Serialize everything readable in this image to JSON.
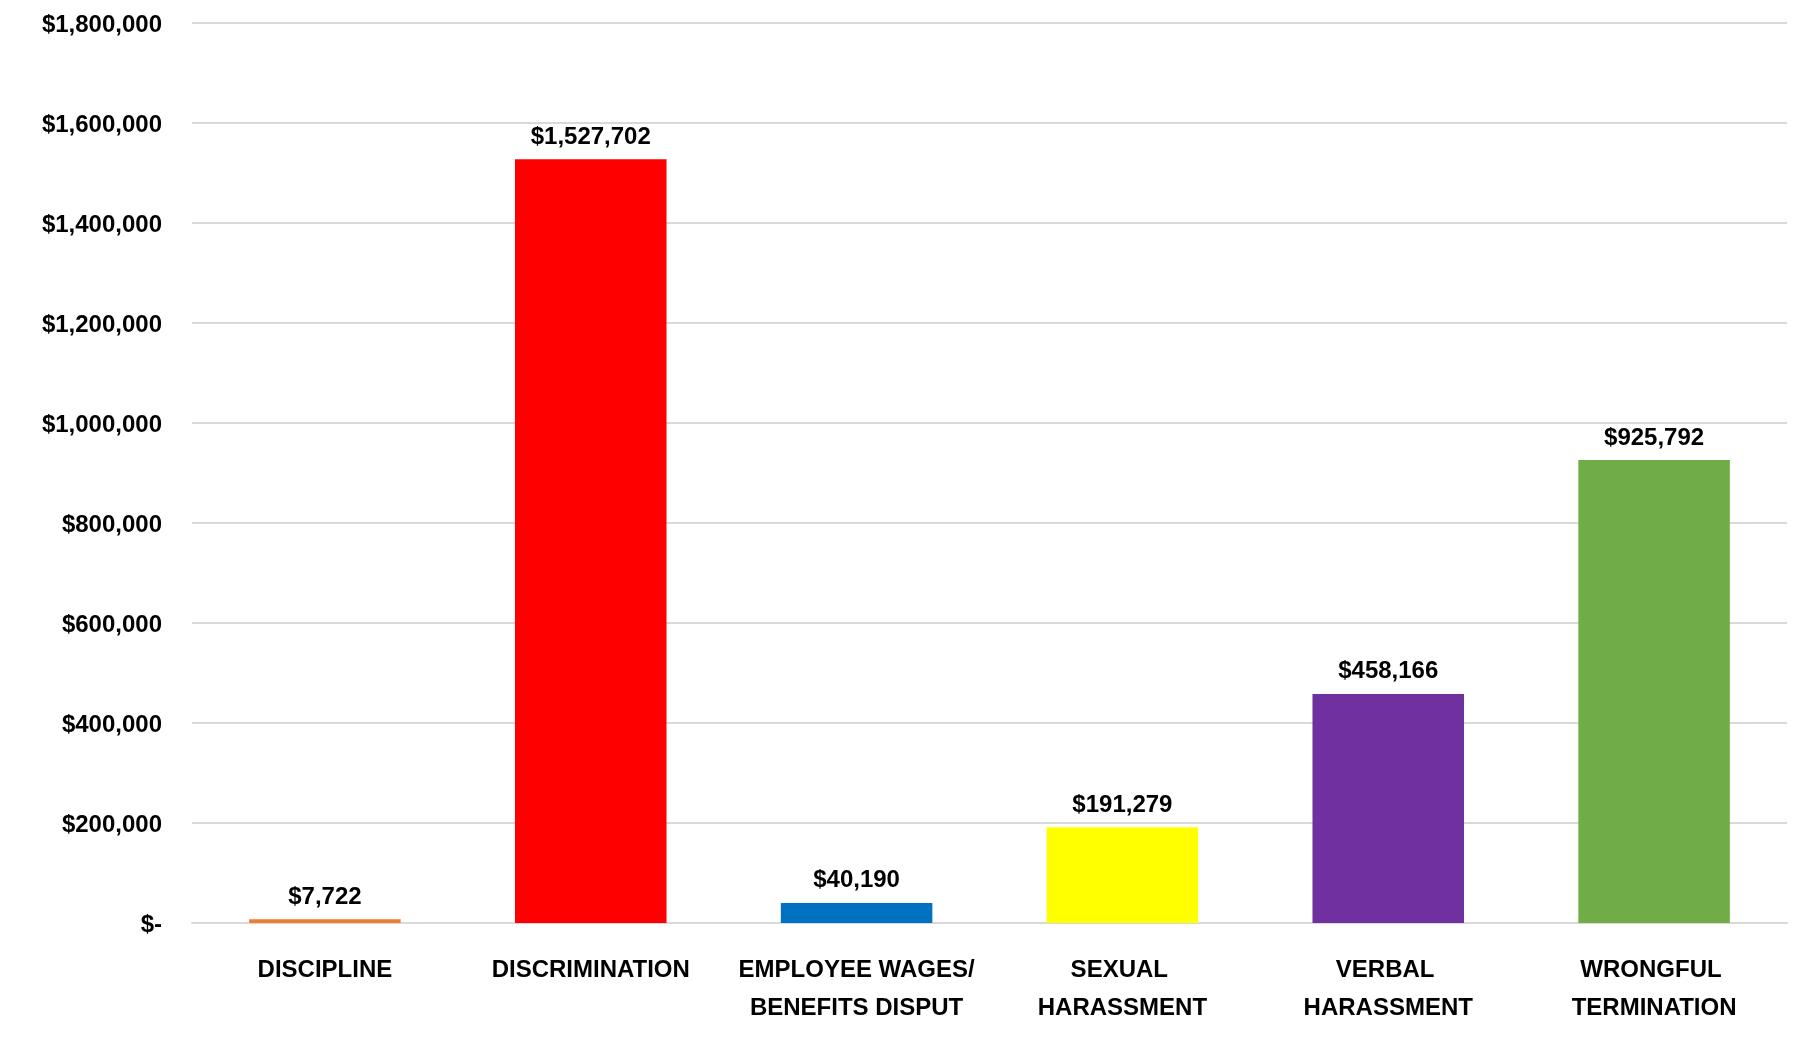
{
  "chart_data": {
    "type": "bar",
    "categories": [
      "DISCIPLINE",
      "DISCRIMINATION",
      "EMPLOYEE WAGES/BENEFITS DISPUT",
      "SEXUAL HARASSMENT",
      "VERBAL HARASSMENT",
      "WRONGFUL TERMINATION"
    ],
    "values": [
      7722,
      1527702,
      40190,
      191279,
      458166,
      925792
    ],
    "colors": [
      "#ed7d31",
      "#ff0000",
      "#0070c0",
      "#ffff00",
      "#7030a0",
      "#70ad47"
    ],
    "value_labels": [
      "$7,722",
      "$1,527,702",
      "$40,190",
      "$191,279",
      "$458,166",
      "$925,792"
    ],
    "ylim": [
      0,
      1800000
    ],
    "yticks": [
      {
        "value": 0,
        "label": "$-"
      },
      {
        "value": 200000,
        "label": "$200,000"
      },
      {
        "value": 400000,
        "label": "$400,000"
      },
      {
        "value": 600000,
        "label": "$600,000"
      },
      {
        "value": 800000,
        "label": "$800,000"
      },
      {
        "value": 1000000,
        "label": "$1,000,000"
      },
      {
        "value": 1200000,
        "label": "$1,200,000"
      },
      {
        "value": 1400000,
        "label": "$1,400,000"
      },
      {
        "value": 1600000,
        "label": "$1,600,000"
      },
      {
        "value": 1800000,
        "label": "$1,800,000"
      }
    ],
    "grid": "y"
  }
}
